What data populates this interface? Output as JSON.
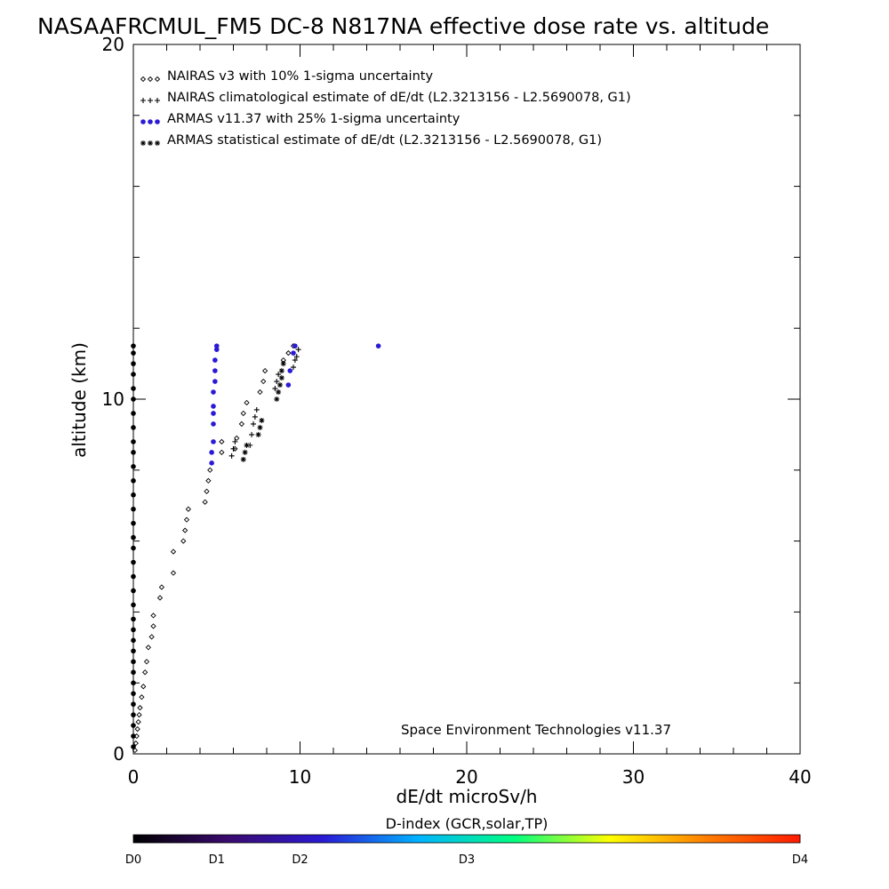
{
  "chart_data": {
    "type": "scatter",
    "title": "NASAAFRCMUL_FM5 DC-8   N817NA effective dose rate vs. altitude",
    "xlabel": "dE/dt microSv/h",
    "ylabel": "altitude (km)",
    "xlim": [
      0,
      40
    ],
    "ylim": [
      0,
      20
    ],
    "x_ticks": [
      "0",
      "10",
      "20",
      "30",
      "40"
    ],
    "y_ticks": [
      "0",
      "10",
      "20"
    ],
    "grid": false,
    "legend_placement": "top-left",
    "annotation": "Space Environment Technologies v11.37",
    "series": [
      {
        "name": "NAIRAS v3 with 10% 1-sigma uncertainty",
        "marker": "diamond",
        "color": "#000000",
        "points": [
          [
            0.1,
            0.1
          ],
          [
            0.15,
            0.3
          ],
          [
            0.2,
            0.5
          ],
          [
            0.25,
            0.7
          ],
          [
            0.3,
            0.9
          ],
          [
            0.35,
            1.1
          ],
          [
            0.4,
            1.3
          ],
          [
            0.5,
            1.6
          ],
          [
            0.6,
            1.9
          ],
          [
            0.7,
            2.3
          ],
          [
            0.8,
            2.6
          ],
          [
            0.9,
            3.0
          ],
          [
            1.1,
            3.3
          ],
          [
            1.2,
            3.6
          ],
          [
            1.2,
            3.9
          ],
          [
            1.6,
            4.4
          ],
          [
            1.7,
            4.7
          ],
          [
            2.4,
            5.1
          ],
          [
            2.4,
            5.7
          ],
          [
            3.0,
            6.0
          ],
          [
            3.1,
            6.3
          ],
          [
            3.2,
            6.6
          ],
          [
            3.3,
            6.9
          ],
          [
            4.3,
            7.1
          ],
          [
            4.4,
            7.4
          ],
          [
            4.5,
            7.7
          ],
          [
            4.6,
            8.0
          ],
          [
            5.3,
            8.5
          ],
          [
            5.3,
            8.8
          ],
          [
            6.1,
            8.6
          ],
          [
            6.2,
            8.9
          ],
          [
            6.5,
            9.3
          ],
          [
            6.6,
            9.6
          ],
          [
            6.8,
            9.9
          ],
          [
            7.6,
            10.2
          ],
          [
            7.8,
            10.5
          ],
          [
            7.9,
            10.8
          ],
          [
            9.0,
            11.1
          ],
          [
            9.3,
            11.3
          ],
          [
            9.6,
            11.5
          ]
        ]
      },
      {
        "name": "NAIRAS climatological estimate of dE/dt (L2.3213156 - L2.5690078, G1)",
        "marker": "plus",
        "color": "#000000",
        "points": [
          [
            5.9,
            8.4
          ],
          [
            6.0,
            8.6
          ],
          [
            6.1,
            8.8
          ],
          [
            7.0,
            8.7
          ],
          [
            7.1,
            9.0
          ],
          [
            7.2,
            9.3
          ],
          [
            7.3,
            9.5
          ],
          [
            7.4,
            9.7
          ],
          [
            8.5,
            10.3
          ],
          [
            8.6,
            10.5
          ],
          [
            8.7,
            10.7
          ],
          [
            9.6,
            10.9
          ],
          [
            9.7,
            11.1
          ],
          [
            9.8,
            11.2
          ],
          [
            9.9,
            11.4
          ]
        ]
      },
      {
        "name": "ARMAS v11.37 with 25% 1-sigma uncertainty",
        "marker": "dot",
        "color": "#2a1ad6",
        "points": [
          [
            4.7,
            8.2
          ],
          [
            4.7,
            8.5
          ],
          [
            4.8,
            8.8
          ],
          [
            4.8,
            9.3
          ],
          [
            4.8,
            9.6
          ],
          [
            4.8,
            9.8
          ],
          [
            4.8,
            10.2
          ],
          [
            4.9,
            10.5
          ],
          [
            4.9,
            10.8
          ],
          [
            4.9,
            11.1
          ],
          [
            5.0,
            11.4
          ],
          [
            5.0,
            11.5
          ],
          [
            9.3,
            10.4
          ],
          [
            9.4,
            10.8
          ],
          [
            9.6,
            11.3
          ],
          [
            9.7,
            11.5
          ],
          [
            14.7,
            11.5
          ]
        ]
      },
      {
        "name": "ARMAS statistical estimate of dE/dt (L2.3213156 - L2.5690078, G1)",
        "marker": "asterisk",
        "color": "#000000",
        "points": [
          [
            6.6,
            8.3
          ],
          [
            6.7,
            8.5
          ],
          [
            6.8,
            8.7
          ],
          [
            7.5,
            9.0
          ],
          [
            7.6,
            9.2
          ],
          [
            7.7,
            9.4
          ],
          [
            8.6,
            10.0
          ],
          [
            8.7,
            10.2
          ],
          [
            8.8,
            10.4
          ],
          [
            8.9,
            10.6
          ],
          [
            8.9,
            10.8
          ],
          [
            9.0,
            11.0
          ]
        ]
      },
      {
        "name": "",
        "marker": "dot",
        "color": "#000000",
        "points": [
          [
            0,
            0.2
          ],
          [
            0,
            0.5
          ],
          [
            0,
            0.8
          ],
          [
            0,
            1.1
          ],
          [
            0,
            1.4
          ],
          [
            0,
            1.7
          ],
          [
            0,
            2.0
          ],
          [
            0,
            2.3
          ],
          [
            0,
            2.6
          ],
          [
            0,
            2.9
          ],
          [
            0,
            3.2
          ],
          [
            0,
            3.5
          ],
          [
            0,
            3.8
          ],
          [
            0,
            4.2
          ],
          [
            0,
            4.6
          ],
          [
            0,
            5.0
          ],
          [
            0,
            5.4
          ],
          [
            0,
            5.8
          ],
          [
            0,
            6.1
          ],
          [
            0,
            6.5
          ],
          [
            0,
            6.9
          ],
          [
            0,
            7.3
          ],
          [
            0,
            7.7
          ],
          [
            0,
            8.1
          ],
          [
            0,
            8.5
          ],
          [
            0,
            8.8
          ],
          [
            0,
            9.2
          ],
          [
            0,
            9.6
          ],
          [
            0,
            10.0
          ],
          [
            0,
            10.3
          ],
          [
            0,
            10.7
          ],
          [
            0,
            11.0
          ],
          [
            0,
            11.3
          ],
          [
            0,
            11.5
          ]
        ]
      }
    ],
    "colorbar": {
      "title": "D-index (GCR,solar,TP)",
      "labels": [
        "D0",
        "D1",
        "D2",
        "D3",
        "D4"
      ],
      "label_positions": [
        0,
        0.125,
        0.25,
        0.5,
        1.0
      ],
      "colors": [
        "#000000",
        "#3a0a6e",
        "#2a1ad6",
        "#00b4ff",
        "#00ff80",
        "#ffff00",
        "#ff8000",
        "#ff1a00"
      ]
    }
  }
}
